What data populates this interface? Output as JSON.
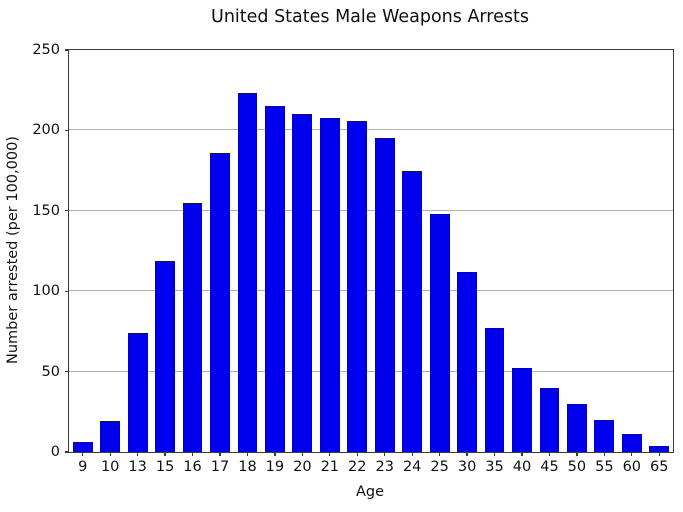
{
  "chart_data": {
    "type": "bar",
    "title": "United States Male Weapons Arrests",
    "xlabel": "Age",
    "ylabel": "Number arrested (per 100,000)",
    "categories": [
      "9",
      "10",
      "13",
      "15",
      "16",
      "17",
      "18",
      "19",
      "20",
      "21",
      "22",
      "23",
      "24",
      "25",
      "30",
      "35",
      "40",
      "45",
      "50",
      "55",
      "60",
      "65"
    ],
    "values": [
      6,
      19,
      74,
      119,
      155,
      186,
      223,
      215,
      210,
      208,
      206,
      195,
      175,
      148,
      112,
      77,
      52,
      40,
      30,
      20,
      11,
      4
    ],
    "ylim": [
      0,
      250
    ],
    "yticks": [
      0,
      50,
      100,
      150,
      200,
      250
    ],
    "grid": "horizontal",
    "legend": "none",
    "bar_color": "#0000ee",
    "grid_color": "#b0b0b0",
    "spine_color": "#3a3a3a",
    "text_color": "#111111"
  }
}
